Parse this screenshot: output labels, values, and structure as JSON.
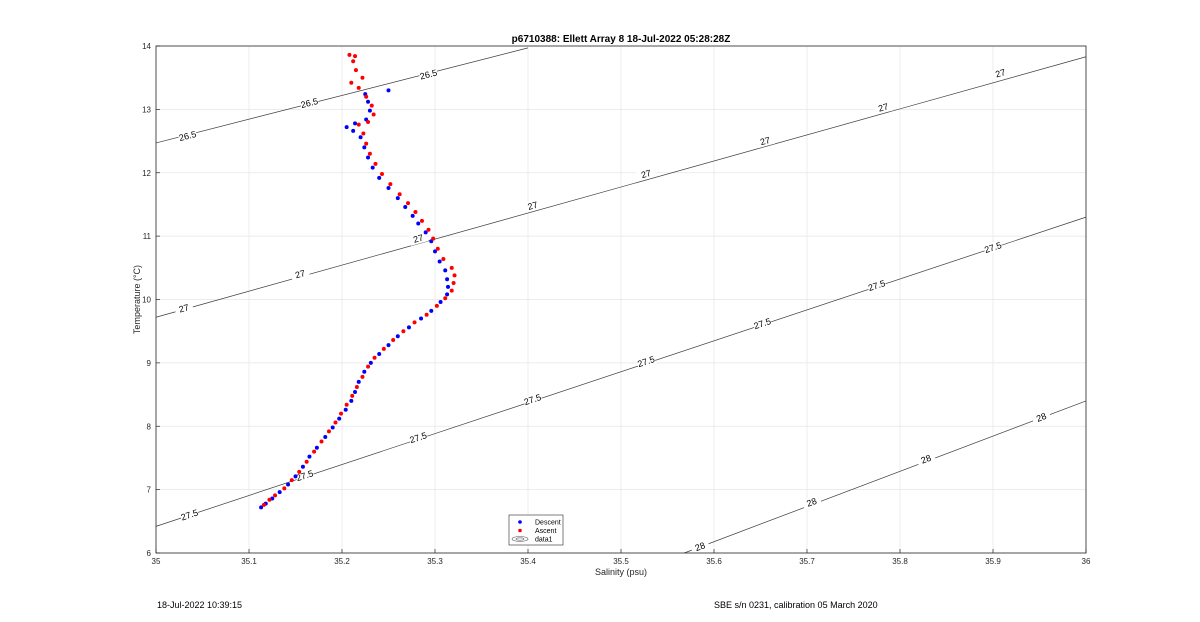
{
  "chart_data": {
    "type": "scatter",
    "title": "p6710388: Ellett Array 8 18-Jul-2022 05:28:28Z",
    "xlabel": "Salinity (psu)",
    "ylabel": "Temperature (°C)",
    "xlim": [
      35,
      36
    ],
    "ylim": [
      6,
      14
    ],
    "xticks": [
      "35",
      "35.1",
      "35.2",
      "35.3",
      "35.4",
      "35.5",
      "35.6",
      "35.7",
      "35.8",
      "35.9",
      "36"
    ],
    "yticks": [
      "6",
      "7",
      "8",
      "9",
      "10",
      "11",
      "12",
      "13",
      "14"
    ],
    "grid": true,
    "legend_position": "bottom-center",
    "series": [
      {
        "name": "Descent",
        "color": "#0000ff",
        "marker": "dot",
        "points": [
          [
            35.113,
            6.72
          ],
          [
            35.118,
            6.78
          ],
          [
            35.125,
            6.86
          ],
          [
            35.133,
            6.96
          ],
          [
            35.142,
            7.08
          ],
          [
            35.15,
            7.21
          ],
          [
            35.158,
            7.36
          ],
          [
            35.165,
            7.52
          ],
          [
            35.173,
            7.66
          ],
          [
            35.182,
            7.83
          ],
          [
            35.19,
            7.98
          ],
          [
            35.197,
            8.12
          ],
          [
            35.204,
            8.26
          ],
          [
            35.21,
            8.4
          ],
          [
            35.214,
            8.54
          ],
          [
            35.218,
            8.7
          ],
          [
            35.224,
            8.86
          ],
          [
            35.231,
            9.0
          ],
          [
            35.24,
            9.14
          ],
          [
            35.25,
            9.28
          ],
          [
            35.26,
            9.42
          ],
          [
            35.272,
            9.56
          ],
          [
            35.285,
            9.7
          ],
          [
            35.296,
            9.82
          ],
          [
            35.306,
            9.96
          ],
          [
            35.313,
            10.08
          ],
          [
            35.314,
            10.2
          ],
          [
            35.313,
            10.32
          ],
          [
            35.311,
            10.46
          ],
          [
            35.305,
            10.6
          ],
          [
            35.3,
            10.76
          ],
          [
            35.296,
            10.92
          ],
          [
            35.29,
            11.06
          ],
          [
            35.282,
            11.2
          ],
          [
            35.276,
            11.32
          ],
          [
            35.268,
            11.46
          ],
          [
            35.26,
            11.6
          ],
          [
            35.25,
            11.76
          ],
          [
            35.24,
            11.92
          ],
          [
            35.233,
            12.08
          ],
          [
            35.228,
            12.24
          ],
          [
            35.224,
            12.4
          ],
          [
            35.22,
            12.56
          ],
          [
            35.212,
            12.66
          ],
          [
            35.205,
            12.72
          ],
          [
            35.214,
            12.78
          ],
          [
            35.226,
            12.84
          ],
          [
            35.23,
            12.98
          ],
          [
            35.228,
            13.12
          ],
          [
            35.225,
            13.24
          ],
          [
            35.25,
            13.3
          ]
        ]
      },
      {
        "name": "Ascent",
        "color": "#ff0000",
        "marker": "dot",
        "points": [
          [
            35.116,
            6.76
          ],
          [
            35.122,
            6.84
          ],
          [
            35.128,
            6.91
          ],
          [
            35.138,
            7.02
          ],
          [
            35.146,
            7.15
          ],
          [
            35.154,
            7.28
          ],
          [
            35.162,
            7.44
          ],
          [
            35.17,
            7.6
          ],
          [
            35.178,
            7.76
          ],
          [
            35.186,
            7.92
          ],
          [
            35.193,
            8.06
          ],
          [
            35.199,
            8.2
          ],
          [
            35.205,
            8.34
          ],
          [
            35.211,
            8.48
          ],
          [
            35.216,
            8.62
          ],
          [
            35.222,
            8.78
          ],
          [
            35.228,
            8.94
          ],
          [
            35.235,
            9.08
          ],
          [
            35.245,
            9.22
          ],
          [
            35.255,
            9.36
          ],
          [
            35.266,
            9.5
          ],
          [
            35.278,
            9.64
          ],
          [
            35.291,
            9.76
          ],
          [
            35.302,
            9.9
          ],
          [
            35.311,
            10.02
          ],
          [
            35.318,
            10.14
          ],
          [
            35.32,
            10.26
          ],
          [
            35.321,
            10.38
          ],
          [
            35.318,
            10.5
          ],
          [
            35.309,
            10.64
          ],
          [
            35.303,
            10.8
          ],
          [
            35.298,
            10.96
          ],
          [
            35.293,
            11.1
          ],
          [
            35.286,
            11.24
          ],
          [
            35.279,
            11.38
          ],
          [
            35.271,
            11.52
          ],
          [
            35.262,
            11.66
          ],
          [
            35.252,
            11.82
          ],
          [
            35.243,
            11.98
          ],
          [
            35.236,
            12.14
          ],
          [
            35.23,
            12.3
          ],
          [
            35.226,
            12.46
          ],
          [
            35.223,
            12.62
          ],
          [
            35.218,
            12.76
          ],
          [
            35.228,
            12.8
          ],
          [
            35.234,
            12.92
          ],
          [
            35.232,
            13.06
          ],
          [
            35.226,
            13.2
          ],
          [
            35.218,
            13.34
          ],
          [
            35.21,
            13.42
          ],
          [
            35.222,
            13.5
          ],
          [
            35.215,
            13.62
          ],
          [
            35.212,
            13.76
          ],
          [
            35.208,
            13.86
          ],
          [
            35.214,
            13.84
          ]
        ]
      }
    ],
    "contours": [
      {
        "level": 26.5,
        "points": [
          [
            35.0,
            12.47
          ],
          [
            35.4,
            13.97
          ]
        ],
        "labels": [
          [
            35.034,
            12.58
          ],
          [
            35.165,
            13.1
          ],
          [
            35.293,
            13.55
          ]
        ]
      },
      {
        "level": 27,
        "points": [
          [
            35.0,
            9.72
          ],
          [
            36.0,
            13.83
          ]
        ],
        "labels": [
          [
            35.03,
            9.86
          ],
          [
            35.155,
            10.4
          ],
          [
            35.282,
            10.96
          ],
          [
            35.405,
            11.48
          ],
          [
            35.527,
            11.98
          ],
          [
            35.655,
            12.5
          ],
          [
            35.782,
            13.03
          ],
          [
            35.908,
            13.57
          ]
        ]
      },
      {
        "level": 27.5,
        "points": [
          [
            35.0,
            6.42
          ],
          [
            36.0,
            11.3
          ]
        ],
        "labels": [
          [
            35.036,
            6.6
          ],
          [
            35.16,
            7.22
          ],
          [
            35.282,
            7.82
          ],
          [
            35.405,
            8.42
          ],
          [
            35.527,
            9.02
          ],
          [
            35.652,
            9.62
          ],
          [
            35.775,
            10.22
          ],
          [
            35.9,
            10.82
          ]
        ]
      },
      {
        "level": 28,
        "points": [
          [
            35.568,
            6.0
          ],
          [
            36.0,
            8.4
          ]
        ],
        "labels": [
          [
            35.585,
            6.1
          ],
          [
            35.705,
            6.8
          ],
          [
            35.828,
            7.48
          ],
          [
            35.952,
            8.14
          ]
        ]
      }
    ],
    "legend_entries": [
      "Descent",
      "Ascent",
      "data1"
    ]
  },
  "footer": {
    "left": "18-Jul-2022 10:39:15",
    "right": "SBE s/n 0231, calibration 05 March 2020"
  }
}
